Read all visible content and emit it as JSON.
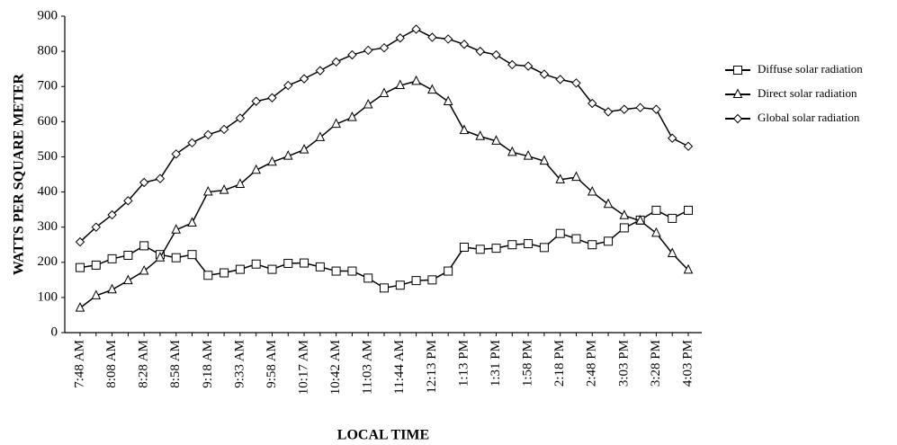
{
  "chart_data": {
    "type": "line",
    "xlabel": "LOCAL TIME",
    "ylabel": "WATTS PER SQUARE METER",
    "categories": [
      "7:48 AM",
      null,
      "8:08 AM",
      null,
      "8:28 AM",
      null,
      "8:58 AM",
      null,
      "9:18 AM",
      null,
      "9:33 AM",
      null,
      "9:58 AM",
      null,
      "10:17 AM",
      null,
      "10:42 AM",
      null,
      "11:03 AM",
      null,
      "11:44 AM",
      null,
      "12:13 PM",
      null,
      "1:13 PM",
      null,
      "1:31 PM",
      null,
      "1:58 PM",
      null,
      "2:18 PM",
      null,
      "2:48 PM",
      null,
      "3:03 PM",
      null,
      "3:28 PM",
      null,
      "4:03 PM"
    ],
    "series": [
      {
        "name": "Diffuse solar radiation",
        "color": "#000000",
        "marker": "square",
        "values": [
          185,
          192,
          210,
          220,
          247,
          222,
          213,
          222,
          163,
          170,
          180,
          195,
          180,
          197,
          198,
          187,
          175,
          175,
          155,
          127,
          135,
          148,
          150,
          175,
          243,
          237,
          240,
          250,
          253,
          242,
          282,
          267,
          250,
          260,
          298,
          320,
          348,
          325,
          348
        ]
      },
      {
        "name": "Direct solar radiation",
        "color": "#000000",
        "marker": "triangle",
        "values": [
          70,
          105,
          122,
          148,
          175,
          213,
          292,
          312,
          400,
          405,
          422,
          462,
          485,
          502,
          520,
          555,
          593,
          612,
          648,
          680,
          703,
          715,
          690,
          657,
          575,
          558,
          545,
          513,
          502,
          488,
          435,
          442,
          400,
          365,
          333,
          318,
          283,
          225,
          178
        ]
      },
      {
        "name": "Global solar radiation",
        "color": "#000000",
        "marker": "diamond",
        "values": [
          258,
          300,
          335,
          375,
          427,
          438,
          508,
          540,
          563,
          578,
          610,
          658,
          668,
          703,
          722,
          745,
          770,
          790,
          803,
          810,
          838,
          863,
          840,
          835,
          820,
          800,
          790,
          762,
          758,
          735,
          720,
          710,
          652,
          628,
          635,
          640,
          635,
          553,
          530
        ]
      }
    ],
    "ylim": [
      0,
      900
    ],
    "yticks": [
      0,
      100,
      200,
      300,
      400,
      500,
      600,
      700,
      800,
      900
    ],
    "grid": false,
    "legend": "right"
  }
}
